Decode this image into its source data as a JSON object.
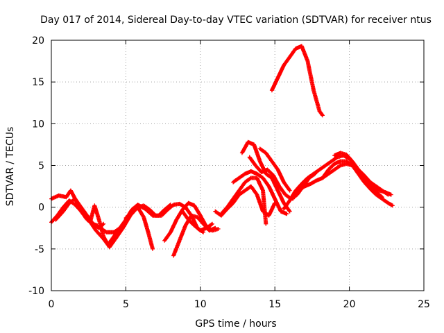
{
  "chart_data": {
    "type": "scatter",
    "title": "Day 017 of 2014, Sidereal Day-to-day VTEC variation (SDTVAR) for receiver ntus",
    "xlabel": "GPS time / hours",
    "ylabel": "SDTVAR / TECUs",
    "xlim": [
      0,
      25
    ],
    "ylim": [
      -10,
      20
    ],
    "xticks": [
      0,
      5,
      10,
      15,
      20,
      25
    ],
    "yticks": [
      -10,
      -5,
      0,
      5,
      10,
      15,
      20
    ],
    "grid": true,
    "marker": "+",
    "color": "#ff0000",
    "series": [
      {
        "name": "arc-01",
        "x": [
          0.0,
          0.5,
          1.0,
          1.3,
          1.6,
          2.0,
          2.5,
          3.0,
          3.5,
          3.8,
          4.2,
          4.6
        ],
        "y": [
          1.0,
          1.4,
          1.2,
          2.0,
          1.0,
          -0.5,
          -1.5,
          -2.8,
          -3.8,
          -4.5,
          -3.5,
          -2.5
        ]
      },
      {
        "name": "arc-02",
        "x": [
          0.0,
          0.4,
          0.8,
          1.2,
          1.6,
          2.0,
          2.4,
          2.8,
          3.2,
          3.5
        ],
        "y": [
          -1.8,
          -1.0,
          0.0,
          0.8,
          0.3,
          -0.5,
          -1.5,
          -2.0,
          -2.5,
          -2.0
        ]
      },
      {
        "name": "arc-03",
        "x": [
          0.3,
          0.8,
          1.2,
          1.6,
          2.0,
          2.4,
          2.8,
          3.1
        ],
        "y": [
          -1.5,
          -0.5,
          0.5,
          1.0,
          0.0,
          -1.0,
          -2.0,
          -2.2
        ]
      },
      {
        "name": "arc-04",
        "x": [
          2.6,
          2.9,
          3.2,
          3.5,
          3.9,
          4.3,
          4.8,
          5.3,
          5.8,
          6.2,
          6.5,
          6.8
        ],
        "y": [
          -1.8,
          0.2,
          -1.5,
          -3.5,
          -4.8,
          -3.8,
          -2.5,
          -1.0,
          0.0,
          -1.2,
          -3.0,
          -5.0
        ]
      },
      {
        "name": "arc-05",
        "x": [
          3.3,
          3.7,
          4.2,
          4.6,
          5.0,
          5.4,
          5.8,
          6.3,
          6.8,
          7.2,
          7.6,
          8.0
        ],
        "y": [
          -2.5,
          -3.0,
          -3.0,
          -2.5,
          -1.5,
          -0.3,
          0.3,
          -0.2,
          -1.0,
          -1.0,
          -0.3,
          0.3
        ]
      },
      {
        "name": "arc-06",
        "x": [
          5.0,
          5.4,
          5.8,
          6.2,
          6.6,
          7.0,
          7.4,
          7.8,
          8.2,
          8.6,
          9.0,
          9.4,
          9.8,
          10.2
        ],
        "y": [
          -1.3,
          -0.6,
          0.0,
          0.2,
          -0.3,
          -1.0,
          -1.0,
          -0.3,
          0.3,
          0.4,
          0.0,
          -1.0,
          -2.5,
          -3.0
        ]
      },
      {
        "name": "arc-07",
        "x": [
          7.6,
          8.0,
          8.4,
          8.8,
          9.2,
          9.6,
          10.0,
          10.4,
          10.8,
          11.2
        ],
        "y": [
          -4.0,
          -3.0,
          -1.5,
          -0.3,
          0.5,
          0.2,
          -1.0,
          -2.3,
          -2.8,
          -2.6
        ]
      },
      {
        "name": "arc-08",
        "x": [
          8.2,
          8.6,
          9.0,
          9.4,
          9.8,
          10.2,
          10.6,
          11.0
        ],
        "y": [
          -5.8,
          -4.0,
          -2.2,
          -1.0,
          -1.2,
          -2.0,
          -2.8,
          -2.5
        ]
      },
      {
        "name": "arc-09",
        "x": [
          8.8,
          9.2,
          9.6,
          10.0,
          10.4,
          10.8
        ],
        "y": [
          -0.5,
          -1.5,
          -2.2,
          -2.8,
          -2.5,
          -2.0
        ]
      },
      {
        "name": "arc-10",
        "x": [
          11.0,
          11.4,
          11.8,
          12.2,
          12.6,
          13.0,
          13.4,
          13.8,
          14.2,
          14.6,
          15.0
        ],
        "y": [
          -0.5,
          -1.0,
          -0.2,
          0.5,
          1.5,
          2.0,
          2.5,
          1.5,
          -0.5,
          -1.0,
          0.5
        ]
      },
      {
        "name": "arc-11",
        "x": [
          11.4,
          11.8,
          12.2,
          12.6,
          13.0,
          13.4,
          13.8,
          14.2,
          14.4
        ],
        "y": [
          -0.8,
          0.0,
          1.0,
          2.0,
          3.0,
          3.5,
          3.5,
          2.0,
          -2.0
        ]
      },
      {
        "name": "arc-12",
        "x": [
          12.2,
          12.6,
          13.0,
          13.4,
          13.8,
          14.2,
          14.6,
          15.0,
          15.4,
          15.8
        ],
        "y": [
          3.0,
          3.5,
          4.0,
          4.3,
          4.0,
          3.5,
          2.5,
          1.0,
          -0.5,
          -0.8
        ]
      },
      {
        "name": "arc-13",
        "x": [
          12.8,
          13.2,
          13.6,
          14.0,
          14.4,
          14.8,
          15.2,
          15.6,
          16.0
        ],
        "y": [
          6.5,
          7.8,
          7.5,
          5.5,
          4.0,
          3.5,
          2.0,
          0.5,
          -0.5
        ]
      },
      {
        "name": "arc-14",
        "x": [
          13.3,
          13.7,
          14.1,
          14.5,
          14.9,
          15.3,
          15.7,
          16.1,
          16.5,
          16.9,
          17.3,
          17.7
        ],
        "y": [
          6.0,
          5.0,
          4.2,
          4.5,
          3.8,
          2.5,
          1.5,
          1.0,
          1.5,
          2.5,
          3.5,
          4.0
        ]
      },
      {
        "name": "arc-15",
        "x": [
          14.0,
          14.4,
          14.8,
          15.2,
          15.6,
          16.0
        ],
        "y": [
          7.0,
          6.5,
          5.5,
          4.5,
          3.0,
          2.0
        ]
      },
      {
        "name": "arc-16",
        "x": [
          14.8,
          15.2,
          15.6,
          16.0,
          16.4,
          16.8,
          17.2,
          17.6,
          18.0,
          18.2
        ],
        "y": [
          14.0,
          15.5,
          17.0,
          18.0,
          19.0,
          19.3,
          17.5,
          14.0,
          11.5,
          11.0
        ]
      },
      {
        "name": "arc-17",
        "x": [
          15.6,
          16.0,
          16.4,
          16.8,
          17.2,
          17.6,
          18.0,
          18.4,
          18.8,
          19.2,
          19.6,
          20.0,
          20.4,
          20.8,
          21.2,
          21.6,
          22.0,
          22.4,
          22.8
        ],
        "y": [
          -0.2,
          0.8,
          2.0,
          2.8,
          3.5,
          4.0,
          4.5,
          5.0,
          5.5,
          6.0,
          6.2,
          5.8,
          5.0,
          4.0,
          3.2,
          2.5,
          2.0,
          1.8,
          1.5
        ]
      },
      {
        "name": "arc-18",
        "x": [
          16.2,
          16.6,
          17.0,
          17.4,
          17.8,
          18.2,
          18.6,
          19.0,
          19.4,
          19.8,
          20.2,
          20.6,
          21.0,
          21.4,
          21.8,
          22.2,
          22.6
        ],
        "y": [
          1.0,
          2.0,
          2.5,
          2.8,
          3.2,
          3.5,
          4.0,
          4.5,
          5.0,
          5.2,
          5.0,
          4.5,
          3.8,
          3.0,
          2.5,
          2.0,
          1.5
        ]
      },
      {
        "name": "arc-19",
        "x": [
          18.2,
          18.6,
          19.0,
          19.4,
          19.8,
          20.2,
          20.6,
          21.0,
          21.4,
          21.8,
          22.2,
          22.6,
          22.9
        ],
        "y": [
          3.5,
          4.5,
          5.2,
          5.5,
          5.5,
          5.0,
          4.0,
          3.0,
          2.2,
          1.5,
          1.0,
          0.5,
          0.2
        ]
      },
      {
        "name": "arc-20",
        "x": [
          19.0,
          19.4,
          19.8,
          20.2,
          20.6,
          21.0,
          21.4,
          21.8,
          22.2
        ],
        "y": [
          6.2,
          6.5,
          6.3,
          5.5,
          4.5,
          3.5,
          2.5,
          1.8,
          1.2
        ]
      }
    ]
  }
}
